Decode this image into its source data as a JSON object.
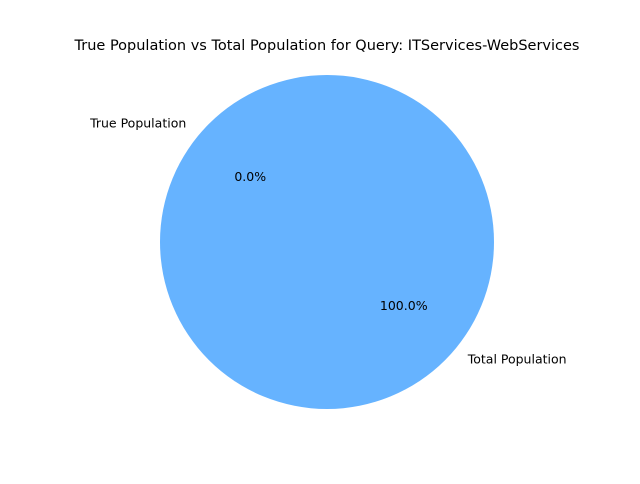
{
  "chart_data": {
    "type": "pie",
    "title": "True Population vs Total Population for Query: ITServices-WebServices",
    "labels": [
      "True Population",
      "Total Population"
    ],
    "values": [
      0.0,
      100.0
    ],
    "percent_labels": [
      "0.0%",
      "100.0%"
    ],
    "colors": [
      "#ff9999",
      "#66b3ff"
    ],
    "start_angle_deg": 140,
    "legend": "none"
  }
}
